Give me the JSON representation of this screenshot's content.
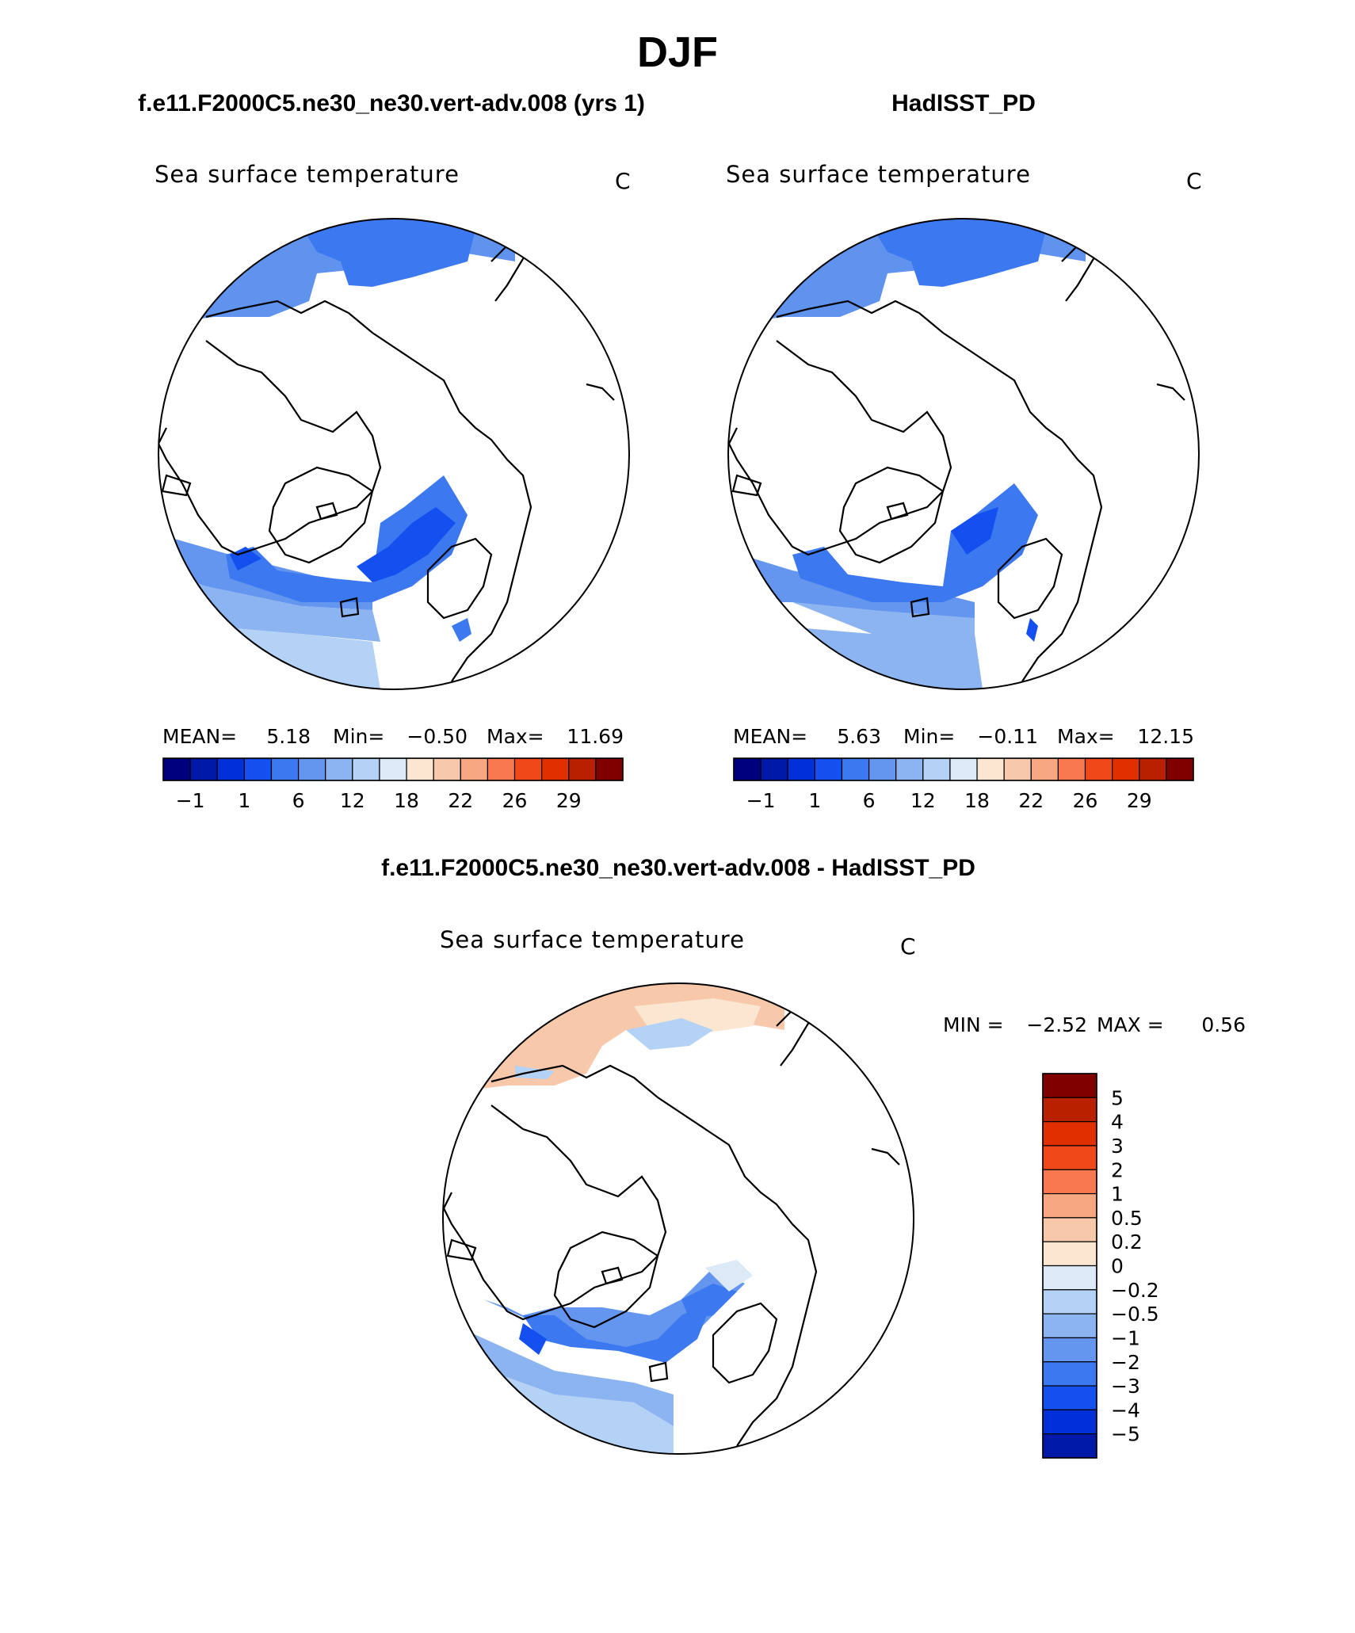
{
  "page": {
    "season": "DJF",
    "left_title": "f.e11.F2000C5.ne30_ne30.vert-adv.008 (yrs 1)",
    "right_title": "HadISST_PD",
    "diff_title": "f.e11.F2000C5.ne30_ne30.vert-adv.008 - HadISST_PD"
  },
  "colors": {
    "land_line": "#000000",
    "frame": "#000000"
  },
  "chart_data": [
    {
      "type": "heatmap",
      "projection": "north polar stereographic",
      "title": "Sea surface temperature",
      "units": "C",
      "stats": {
        "mean_label": "MEAN=",
        "mean": "5.18",
        "min_label": "Min=",
        "min": "−0.50",
        "max_label": "Max=",
        "max": "11.69"
      },
      "colorbar": {
        "tick_labels": [
          "−1",
          "1",
          "6",
          "12",
          "18",
          "22",
          "26",
          "29"
        ],
        "colors": [
          "#00007f",
          "#0018a8",
          "#0030d8",
          "#1450f0",
          "#3c78f0",
          "#6496f0",
          "#8cb4f0",
          "#b4d2f5",
          "#dceaf8",
          "#fbe6d2",
          "#f8c8aa",
          "#f8a880",
          "#f87850",
          "#f04818",
          "#e03000",
          "#b82000",
          "#800000"
        ]
      }
    },
    {
      "type": "heatmap",
      "projection": "north polar stereographic",
      "title": "Sea surface temperature",
      "units": "C",
      "stats": {
        "mean_label": "MEAN=",
        "mean": "5.63",
        "min_label": "Min=",
        "min": "−0.11",
        "max_label": "Max=",
        "max": "12.15"
      },
      "colorbar": {
        "tick_labels": [
          "−1",
          "1",
          "6",
          "12",
          "18",
          "22",
          "26",
          "29"
        ],
        "colors": [
          "#00007f",
          "#0018a8",
          "#0030d8",
          "#1450f0",
          "#3c78f0",
          "#6496f0",
          "#8cb4f0",
          "#b4d2f5",
          "#dceaf8",
          "#fbe6d2",
          "#f8c8aa",
          "#f8a880",
          "#f87850",
          "#f04818",
          "#e03000",
          "#b82000",
          "#800000"
        ]
      }
    },
    {
      "type": "heatmap",
      "projection": "north polar stereographic",
      "title": "Sea surface temperature",
      "units": "C",
      "stats": {
        "min_label": "MIN =",
        "min": "−2.52",
        "max_label": "MAX =",
        "max": "0.56"
      },
      "colorbar": {
        "orientation": "vertical",
        "tick_labels": [
          "5",
          "4",
          "3",
          "2",
          "1",
          "0.5",
          "0.2",
          "0",
          "−0.2",
          "−0.5",
          "−1",
          "−2",
          "−3",
          "−4",
          "−5"
        ],
        "colors": [
          "#800000",
          "#b82000",
          "#e03000",
          "#f04818",
          "#f87850",
          "#f8a880",
          "#f8c8aa",
          "#fbe6d2",
          "#dceaf8",
          "#b4d2f5",
          "#8cb4f0",
          "#6496f0",
          "#3c78f0",
          "#1450f0",
          "#0030d8",
          "#0018a8"
        ]
      }
    }
  ]
}
